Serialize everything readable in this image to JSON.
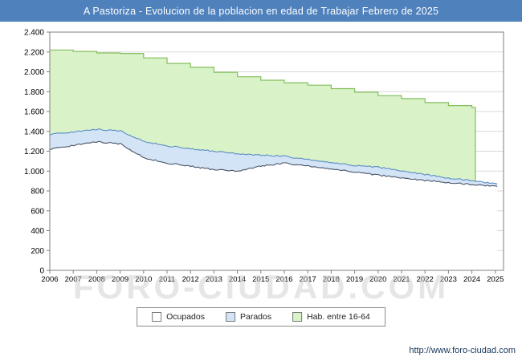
{
  "title": "A Pastoriza - Evolucion de la poblacion en edad de Trabajar Febrero de 2025",
  "watermark": "FORO-CIUDAD.COM",
  "footer_url": "http://www.foro-ciudad.com",
  "colors": {
    "titlebar": "#4f81bd",
    "grid": "#d9d9d9",
    "axis": "#7f7f7f"
  },
  "chart_data": {
    "type": "area",
    "title": "A Pastoriza - Evolucion de la poblacion en edad de Trabajar Febrero de 2025",
    "x": [
      2006,
      2007,
      2008,
      2009,
      2010,
      2011,
      2012,
      2013,
      2014,
      2015,
      2016,
      2017,
      2018,
      2019,
      2020,
      2021,
      2022,
      2023,
      2024,
      2025
    ],
    "xlabel": "",
    "ylabel": "",
    "ylim": [
      0,
      2400
    ],
    "y_tick_step": 200,
    "y_ticks": [
      "0",
      "200",
      "400",
      "600",
      "800",
      "1.000",
      "1.200",
      "1.400",
      "1.600",
      "1.800",
      "2.000",
      "2.200",
      "2.400"
    ],
    "grid": "horizontal",
    "legend_position": "bottom",
    "note": "Parados is a band stacked on top of Ocupados; Hab. entre 16-64 is a yearly stepped background area whose data ends early 2024; employment lines continue to Feb 2025",
    "series": [
      {
        "name": "Ocupados",
        "line_color": "#4a5568",
        "fill_color": "#ffffff",
        "values": [
          1220,
          1260,
          1295,
          1275,
          1135,
          1080,
          1050,
          1015,
          1000,
          1050,
          1080,
          1050,
          1020,
          990,
          960,
          935,
          905,
          885,
          865,
          845
        ]
      },
      {
        "name": "Parados",
        "line_color": "#5b8ec4",
        "fill_color": "#d4e4f7",
        "values": [
          150,
          135,
          125,
          130,
          165,
          175,
          175,
          185,
          175,
          110,
          70,
          65,
          65,
          65,
          80,
          70,
          60,
          45,
          40,
          25
        ]
      },
      {
        "name": "Hab. entre 16-64",
        "line_color": "#84bf5c",
        "fill_color": "#d9f2c8",
        "values": [
          2220,
          2205,
          2190,
          2185,
          2140,
          2085,
          2045,
          1995,
          1950,
          1915,
          1890,
          1865,
          1830,
          1795,
          1760,
          1730,
          1690,
          1660,
          1640,
          null
        ]
      }
    ]
  }
}
